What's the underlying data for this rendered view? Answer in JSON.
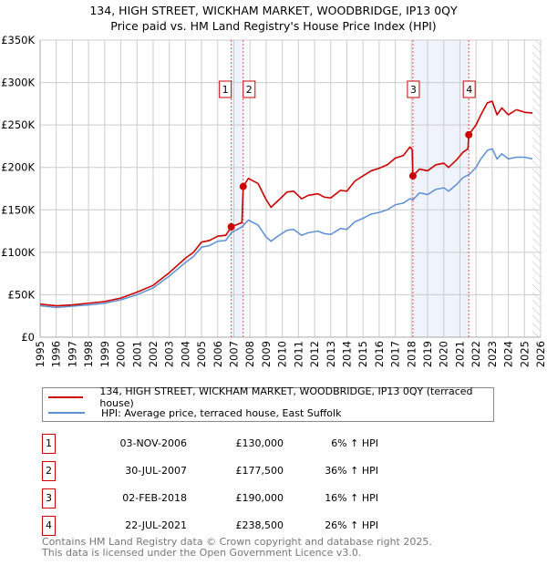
{
  "chart_data": {
    "type": "line",
    "title": "134, HIGH STREET, WICKHAM MARKET, WOODBRIDGE, IP13 0QY",
    "subtitle": "Price paid vs. HM Land Registry's House Price Index (HPI)",
    "xlim": [
      1995,
      2026
    ],
    "ylim": [
      0,
      350000
    ],
    "y_ticks": [
      {
        "v": 0,
        "label": "£0"
      },
      {
        "v": 50000,
        "label": "£50K"
      },
      {
        "v": 100000,
        "label": "£100K"
      },
      {
        "v": 150000,
        "label": "£150K"
      },
      {
        "v": 200000,
        "label": "£200K"
      },
      {
        "v": 250000,
        "label": "£250K"
      },
      {
        "v": 300000,
        "label": "£300K"
      },
      {
        "v": 350000,
        "label": "£350K"
      }
    ],
    "x_ticks": [
      "1995",
      "1996",
      "1997",
      "1998",
      "1999",
      "2000",
      "2001",
      "2002",
      "2003",
      "2004",
      "2005",
      "2006",
      "2007",
      "2008",
      "2009",
      "2010",
      "2011",
      "2012",
      "2013",
      "2014",
      "2015",
      "2016",
      "2017",
      "2018",
      "2019",
      "2020",
      "2021",
      "2022",
      "2023",
      "2024",
      "2025",
      "2026"
    ],
    "grid": true,
    "shaded_ranges": [
      [
        2006.84,
        2007.58
      ],
      [
        2018.09,
        2021.55
      ]
    ],
    "hatched_from": 2025.5,
    "series": [
      {
        "name": "134, HIGH STREET, WICKHAM MARKET, WOODBRIDGE, IP13 0QY (terraced house)",
        "color": "#cc0000",
        "x": [
          1995,
          1996,
          1997,
          1998,
          1999,
          2000,
          2001,
          2002,
          2003,
          2004,
          2004.5,
          2005,
          2005.5,
          2006,
          2006.5,
          2006.84,
          2007.5,
          2007.58,
          2007.9,
          2008.5,
          2009,
          2009.3,
          2009.8,
          2010.3,
          2010.7,
          2011.2,
          2011.6,
          2012.2,
          2012.6,
          2013,
          2013.6,
          2014,
          2014.5,
          2015,
          2015.5,
          2016,
          2016.5,
          2017,
          2017.5,
          2017.9,
          2018.05,
          2018.09,
          2018.5,
          2019,
          2019.5,
          2020,
          2020.3,
          2020.8,
          2021.2,
          2021.5,
          2021.55,
          2022,
          2022.3,
          2022.7,
          2023,
          2023.3,
          2023.6,
          2024,
          2024.5,
          2025,
          2025.5
        ],
        "y": [
          39000,
          37000,
          38000,
          40000,
          42000,
          46000,
          53000,
          61000,
          76000,
          93000,
          100000,
          112000,
          114000,
          119000,
          120000,
          130000,
          135000,
          177500,
          187000,
          181000,
          162000,
          153000,
          162000,
          171000,
          172000,
          163000,
          167000,
          169000,
          165000,
          164000,
          173000,
          172000,
          184000,
          190000,
          196000,
          199000,
          203000,
          211000,
          214000,
          224000,
          221000,
          190000,
          198000,
          196000,
          203000,
          205000,
          200000,
          209000,
          218000,
          222000,
          238500,
          250000,
          262000,
          276000,
          278000,
          262000,
          270000,
          262000,
          268000,
          265000,
          264000
        ]
      },
      {
        "name": "HPI: Average price, terraced house, East Suffolk",
        "color": "#5b8fd4",
        "x": [
          1995,
          1996,
          1997,
          1998,
          1999,
          2000,
          2001,
          2002,
          2003,
          2004,
          2004.5,
          2005,
          2005.5,
          2006,
          2006.5,
          2006.84,
          2007.5,
          2007.9,
          2008.5,
          2009,
          2009.3,
          2009.8,
          2010.3,
          2010.7,
          2011.2,
          2011.6,
          2012.2,
          2012.6,
          2013,
          2013.6,
          2014,
          2014.5,
          2015,
          2015.5,
          2016,
          2016.5,
          2017,
          2017.5,
          2017.9,
          2018.1,
          2018.5,
          2019,
          2019.5,
          2020,
          2020.3,
          2020.8,
          2021.2,
          2021.6,
          2022,
          2022.3,
          2022.7,
          2023,
          2023.3,
          2023.6,
          2024,
          2024.5,
          2025,
          2025.5
        ],
        "y": [
          37000,
          35000,
          36500,
          38000,
          40000,
          44000,
          50000,
          58000,
          72000,
          88000,
          95000,
          106000,
          108000,
          113000,
          114000,
          123000,
          130000,
          138000,
          132000,
          118000,
          113000,
          120000,
          126000,
          127000,
          120000,
          123000,
          125000,
          122000,
          121000,
          128000,
          127000,
          136000,
          140000,
          145000,
          147000,
          150000,
          156000,
          158000,
          163000,
          162000,
          170000,
          168000,
          174000,
          176000,
          172000,
          180000,
          188000,
          192000,
          200000,
          210000,
          220000,
          222000,
          210000,
          216000,
          210000,
          212000,
          212000,
          210000
        ]
      }
    ],
    "sales": [
      {
        "n": "1",
        "x": 2006.84,
        "y": 130000,
        "date": "03-NOV-2006",
        "price": "£130,000",
        "hpi": "6% ↑ HPI"
      },
      {
        "n": "2",
        "x": 2007.58,
        "y": 177500,
        "date": "30-JUL-2007",
        "price": "£177,500",
        "hpi": "36% ↑ HPI"
      },
      {
        "n": "3",
        "x": 2018.09,
        "y": 190000,
        "date": "02-FEB-2018",
        "price": "£190,000",
        "hpi": "16% ↑ HPI"
      },
      {
        "n": "4",
        "x": 2021.55,
        "y": 238500,
        "date": "22-JUL-2021",
        "price": "£238,500",
        "hpi": "26% ↑ HPI"
      }
    ]
  },
  "legend": {
    "red": "134, HIGH STREET, WICKHAM MARKET, WOODBRIDGE, IP13 0QY (terraced house)",
    "blue": "HPI: Average price, terraced house, East Suffolk"
  },
  "footer": {
    "line1": "Contains HM Land Registry data © Crown copyright and database right 2025.",
    "line2": "This data is licensed under the Open Government Licence v3.0."
  }
}
